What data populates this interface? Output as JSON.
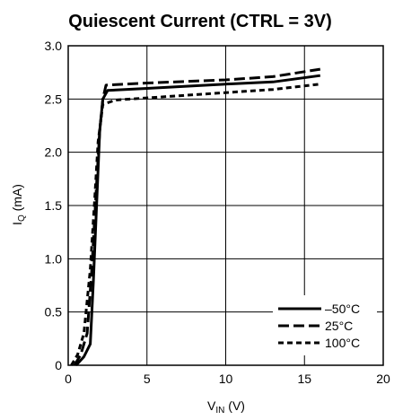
{
  "chart_data": {
    "type": "line",
    "title": "Quiescent Current (CTRL = 3V)",
    "xlabel": {
      "main": "V",
      "sub": "IN",
      "unit": " (V)"
    },
    "ylabel": {
      "main": "I",
      "sub": "Q",
      "unit": " (mA)"
    },
    "xlim": [
      0,
      20
    ],
    "ylim": [
      0,
      3.0
    ],
    "xticks": [
      0,
      5,
      10,
      15,
      20
    ],
    "xtick_labels": [
      "0",
      "5",
      "10",
      "15",
      "20"
    ],
    "yticks": [
      0,
      0.5,
      1.0,
      1.5,
      2.0,
      2.5,
      3.0
    ],
    "ytick_labels": [
      "0",
      "0.5",
      "1.0",
      "1.5",
      "2.0",
      "2.5",
      "3.0"
    ],
    "grid": true,
    "legend_position": "bottom-right",
    "series": [
      {
        "name": "–50°C",
        "style": "solid",
        "points": [
          [
            0.5,
            0
          ],
          [
            1.0,
            0.08
          ],
          [
            1.4,
            0.2
          ],
          [
            1.6,
            0.8
          ],
          [
            1.8,
            1.5
          ],
          [
            2.0,
            2.2
          ],
          [
            2.2,
            2.5
          ],
          [
            2.5,
            2.58
          ],
          [
            5,
            2.6
          ],
          [
            10,
            2.64
          ],
          [
            13,
            2.66
          ],
          [
            16,
            2.72
          ]
        ]
      },
      {
        "name": "25°C",
        "style": "dashed",
        "points": [
          [
            0.4,
            0
          ],
          [
            0.8,
            0.1
          ],
          [
            1.2,
            0.3
          ],
          [
            1.5,
            0.9
          ],
          [
            1.8,
            1.7
          ],
          [
            2.0,
            2.2
          ],
          [
            2.2,
            2.5
          ],
          [
            2.4,
            2.63
          ],
          [
            5,
            2.65
          ],
          [
            10,
            2.68
          ],
          [
            13,
            2.71
          ],
          [
            16,
            2.78
          ]
        ]
      },
      {
        "name": "100°C",
        "style": "dotted",
        "points": [
          [
            0.2,
            0
          ],
          [
            0.6,
            0.1
          ],
          [
            1.0,
            0.3
          ],
          [
            1.4,
            0.9
          ],
          [
            1.7,
            1.6
          ],
          [
            1.9,
            2.1
          ],
          [
            2.2,
            2.45
          ],
          [
            3,
            2.49
          ],
          [
            5,
            2.51
          ],
          [
            10,
            2.56
          ],
          [
            13,
            2.59
          ],
          [
            16,
            2.64
          ]
        ]
      }
    ]
  }
}
